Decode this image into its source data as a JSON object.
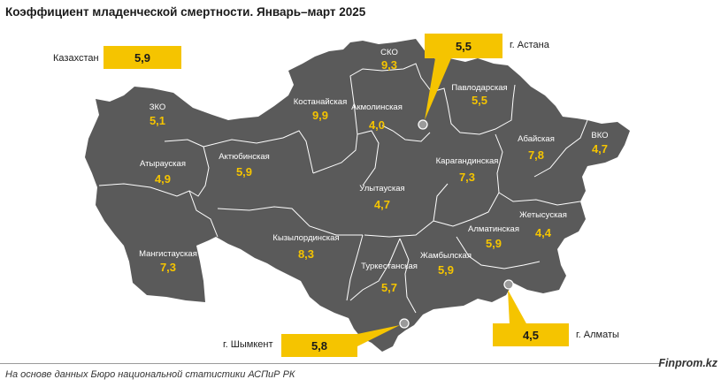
{
  "title": "Коэффициент младенческой смертности. Январь–март 2025",
  "kazakhstan": {
    "label": "Казахстан",
    "value": "5,9"
  },
  "regions": [
    {
      "name": "СКО",
      "value": "9,3"
    },
    {
      "name": "ЗКО",
      "value": "5,1"
    },
    {
      "name": "Костанайская",
      "value": "9,9"
    },
    {
      "name": "Акмолинская",
      "value": "4,0"
    },
    {
      "name": "Павлодарская",
      "value": "5,5"
    },
    {
      "name": "ВКО",
      "value": "4,7"
    },
    {
      "name": "Абайская",
      "value": "7,8"
    },
    {
      "name": "Атырауская",
      "value": "4,9"
    },
    {
      "name": "Актюбинская",
      "value": "5,9"
    },
    {
      "name": "Карагандинская",
      "value": "7,3"
    },
    {
      "name": "Улытауская",
      "value": "4,7"
    },
    {
      "name": "Жетысуская",
      "value": "4,4"
    },
    {
      "name": "Алматинская",
      "value": "5,9"
    },
    {
      "name": "Кызылординская",
      "value": "8,3"
    },
    {
      "name": "Мангистауская",
      "value": "7,3"
    },
    {
      "name": "Туркестанская",
      "value": "5,7"
    },
    {
      "name": "Жамбылская",
      "value": "5,9"
    }
  ],
  "cities": [
    {
      "name": "г. Астана",
      "value": "5,5"
    },
    {
      "name": "г. Шымкент",
      "value": "5,8"
    },
    {
      "name": "г. Алматы",
      "value": "4,5"
    }
  ],
  "colors": {
    "map": "#5a5a5a",
    "border": "#ffffff",
    "accent": "#f5c400"
  },
  "footer": {
    "source": "На основе данных Бюро национальной статистики АСПиР РК",
    "brand": "Finprom.kz"
  }
}
